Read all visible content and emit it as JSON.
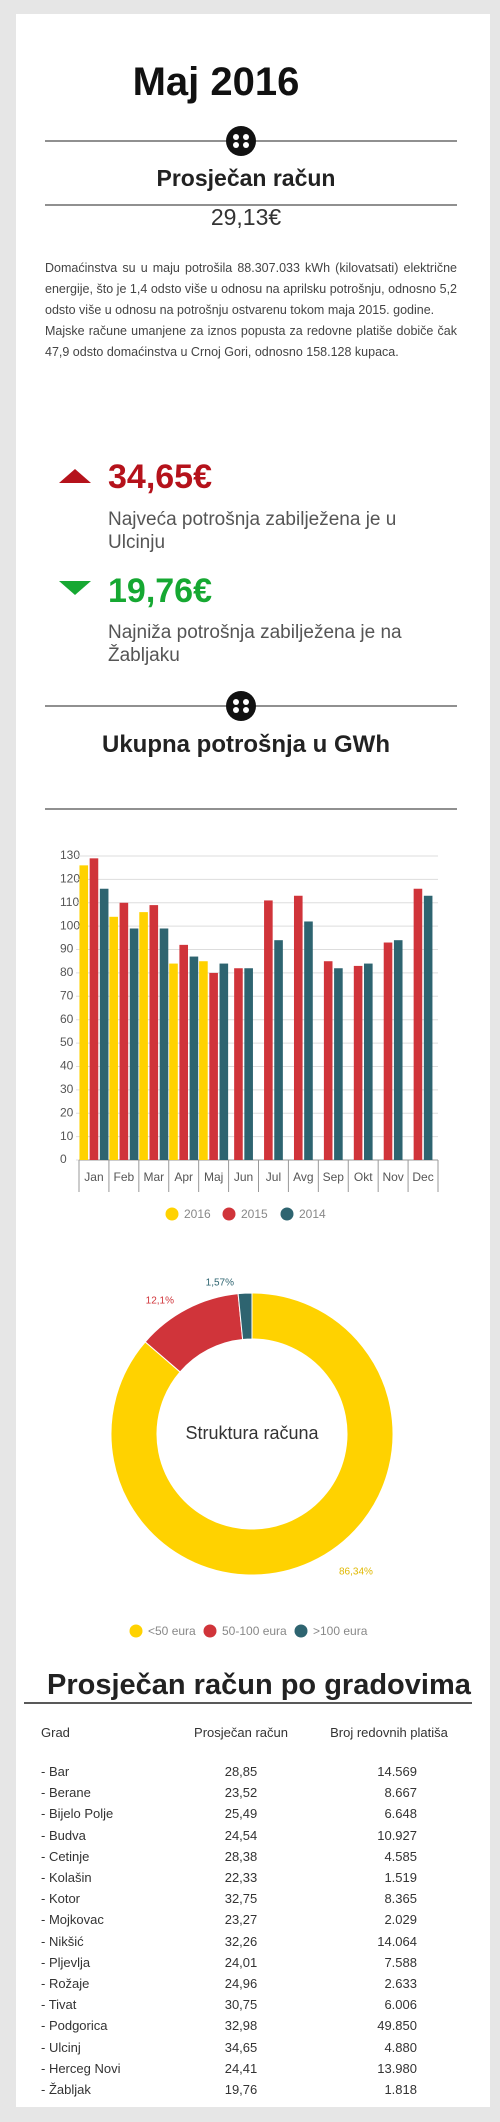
{
  "header": {
    "title": "Maj 2016",
    "subtitle": "Prosječan račun",
    "average": "29,13€"
  },
  "intro": [
    "Domaćinstva su u maju potrošila 88.307.033 kWh (kilovatsati) električne energije, što je 1,4 odsto više u odnosu na aprilsku potrošnju, odnosno 5,2 odsto više u odnosu na potrošnju ostvarenu tokom maja 2015. godine.",
    "Majske račune umanjene za iznos popusta za redovne platiše dobiče čak 47,9 odsto domaćinstva u Crnoj Gori, odnosno 158.128 kupaca."
  ],
  "highlights": [
    {
      "value": "34,65€",
      "text": "Najveća potrošnja zabilježena je u Ulcinju"
    },
    {
      "value": "19,76€",
      "text": "Najniža potrošnja zabilježena je na Žabljaku"
    }
  ],
  "section_title": "Ukupna potrošnja u GWh",
  "chart_data": [
    {
      "type": "bar",
      "categories": [
        "Jan",
        "Feb",
        "Mar",
        "Apr",
        "Maj",
        "Jun",
        "Jul",
        "Avg",
        "Sep",
        "Okt",
        "Nov",
        "Dec"
      ],
      "series": [
        {
          "name": "2016",
          "color": "#ffd200",
          "values": [
            126,
            104,
            106,
            84,
            85,
            null,
            null,
            null,
            null,
            null,
            null,
            null
          ]
        },
        {
          "name": "2015",
          "color": "#d0343a",
          "values": [
            129,
            110,
            109,
            92,
            80,
            82,
            111,
            113,
            85,
            83,
            93,
            116
          ]
        },
        {
          "name": "2014",
          "color": "#2e6470",
          "values": [
            116,
            99,
            99,
            87,
            84,
            82,
            94,
            102,
            82,
            84,
            94,
            113
          ]
        }
      ],
      "ylim": [
        0,
        130
      ],
      "yticks": [
        0,
        10,
        20,
        30,
        40,
        50,
        60,
        70,
        80,
        90,
        100,
        110,
        120,
        130
      ],
      "grid": true
    },
    {
      "type": "pie",
      "center_label": "Struktura računa",
      "categories": [
        "<50 eura",
        "50-100 eura",
        ">100 eura"
      ],
      "values": [
        86.34,
        12.1,
        1.57
      ],
      "value_labels": [
        "86,34%",
        "12,1%",
        "1,57%"
      ],
      "colors": [
        "#ffd200",
        "#d0343a",
        "#2e6470"
      ]
    }
  ],
  "cities": {
    "title": "Prosječan račun po gradovima",
    "columns": [
      "Grad",
      "Prosječan račun",
      "Broj redovnih platiša"
    ],
    "rows": [
      [
        "- Bar",
        "28,85",
        "14.569"
      ],
      [
        "- Berane",
        "23,52",
        "8.667"
      ],
      [
        "- Bijelo Polje",
        "25,49",
        "6.648"
      ],
      [
        "- Budva",
        "24,54",
        "10.927"
      ],
      [
        "- Cetinje",
        "28,38",
        "4.585"
      ],
      [
        "- Kolašin",
        "22,33",
        "1.519"
      ],
      [
        "- Kotor",
        "32,75",
        "8.365"
      ],
      [
        "- Mojkovac",
        "23,27",
        "2.029"
      ],
      [
        "- Nikšić",
        "32,26",
        "14.064"
      ],
      [
        "- Pljevlja",
        "24,01",
        "7.588"
      ],
      [
        "- Rožaje",
        "24,96",
        "2.633"
      ],
      [
        "- Tivat",
        "30,75",
        "6.006"
      ],
      [
        "- Podgorica",
        "32,98",
        "49.850"
      ],
      [
        "- Ulcinj",
        "34,65",
        "4.880"
      ],
      [
        "- Herceg Novi",
        "24,41",
        "13.980"
      ],
      [
        "- Žabljak",
        "19,76",
        "1.818"
      ]
    ]
  }
}
